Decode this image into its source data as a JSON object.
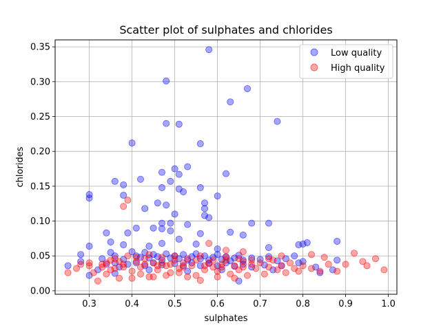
{
  "chart_data": {
    "type": "scatter",
    "title": "Scatter plot of sulphates and chlorides",
    "xlabel": "sulphates",
    "ylabel": "chlorides",
    "xlim": [
      0.22,
      1.02
    ],
    "ylim": [
      -0.005,
      0.36
    ],
    "xticks": [
      0.3,
      0.4,
      0.5,
      0.6,
      0.7,
      0.8,
      0.9,
      1.0
    ],
    "xtick_labels": [
      "0.3",
      "0.4",
      "0.5",
      "0.6",
      "0.7",
      "0.8",
      "0.9",
      "1.0"
    ],
    "yticks": [
      0.0,
      0.05,
      0.1,
      0.15,
      0.2,
      0.25,
      0.3,
      0.35
    ],
    "ytick_labels": [
      "0.00",
      "0.05",
      "0.10",
      "0.15",
      "0.20",
      "0.25",
      "0.30",
      "0.35"
    ],
    "grid": true,
    "legend_position": "top-right",
    "series": [
      {
        "name": "Low quality",
        "color": "#0000ff",
        "alpha": 0.35,
        "points": [
          [
            0.58,
            0.346
          ],
          [
            0.48,
            0.301
          ],
          [
            0.67,
            0.29
          ],
          [
            0.63,
            0.271
          ],
          [
            0.74,
            0.243
          ],
          [
            0.48,
            0.24
          ],
          [
            0.51,
            0.239
          ],
          [
            0.4,
            0.212
          ],
          [
            0.56,
            0.211
          ],
          [
            0.5,
            0.175
          ],
          [
            0.47,
            0.17
          ],
          [
            0.53,
            0.178
          ],
          [
            0.51,
            0.167
          ],
          [
            0.62,
            0.168
          ],
          [
            0.42,
            0.16
          ],
          [
            0.36,
            0.157
          ],
          [
            0.38,
            0.152
          ],
          [
            0.49,
            0.157
          ],
          [
            0.47,
            0.148
          ],
          [
            0.56,
            0.148
          ],
          [
            0.51,
            0.146
          ],
          [
            0.52,
            0.142
          ],
          [
            0.3,
            0.138
          ],
          [
            0.3,
            0.133
          ],
          [
            0.38,
            0.137
          ],
          [
            0.6,
            0.136
          ],
          [
            0.46,
            0.126
          ],
          [
            0.48,
            0.123
          ],
          [
            0.57,
            0.126
          ],
          [
            0.57,
            0.118
          ],
          [
            0.43,
            0.118
          ],
          [
            0.5,
            0.11
          ],
          [
            0.57,
            0.108
          ],
          [
            0.58,
            0.105
          ],
          [
            0.47,
            0.097
          ],
          [
            0.49,
            0.097
          ],
          [
            0.53,
            0.095
          ],
          [
            0.68,
            0.097
          ],
          [
            0.72,
            0.097
          ],
          [
            0.41,
            0.09
          ],
          [
            0.45,
            0.09
          ],
          [
            0.47,
            0.089
          ],
          [
            0.49,
            0.086
          ],
          [
            0.34,
            0.083
          ],
          [
            0.39,
            0.083
          ],
          [
            0.56,
            0.082
          ],
          [
            0.63,
            0.084
          ],
          [
            0.66,
            0.08
          ],
          [
            0.51,
            0.074
          ],
          [
            0.35,
            0.07
          ],
          [
            0.38,
            0.066
          ],
          [
            0.3,
            0.064
          ],
          [
            0.44,
            0.064
          ],
          [
            0.47,
            0.068
          ],
          [
            0.55,
            0.067
          ],
          [
            0.6,
            0.06
          ],
          [
            0.72,
            0.062
          ],
          [
            0.79,
            0.066
          ],
          [
            0.8,
            0.067
          ],
          [
            0.81,
            0.069
          ],
          [
            0.88,
            0.071
          ],
          [
            0.33,
            0.046
          ],
          [
            0.35,
            0.055
          ],
          [
            0.36,
            0.05
          ],
          [
            0.38,
            0.045
          ],
          [
            0.4,
            0.056
          ],
          [
            0.41,
            0.05
          ],
          [
            0.42,
            0.048
          ],
          [
            0.43,
            0.055
          ],
          [
            0.44,
            0.047
          ],
          [
            0.45,
            0.052
          ],
          [
            0.46,
            0.049
          ],
          [
            0.47,
            0.044
          ],
          [
            0.48,
            0.053
          ],
          [
            0.49,
            0.047
          ],
          [
            0.5,
            0.05
          ],
          [
            0.51,
            0.046
          ],
          [
            0.52,
            0.052
          ],
          [
            0.53,
            0.044
          ],
          [
            0.54,
            0.049
          ],
          [
            0.55,
            0.053
          ],
          [
            0.56,
            0.046
          ],
          [
            0.57,
            0.05
          ],
          [
            0.58,
            0.044
          ],
          [
            0.59,
            0.048
          ],
          [
            0.6,
            0.052
          ],
          [
            0.61,
            0.045
          ],
          [
            0.62,
            0.049
          ],
          [
            0.63,
            0.043
          ],
          [
            0.64,
            0.047
          ],
          [
            0.65,
            0.051
          ],
          [
            0.66,
            0.044
          ],
          [
            0.68,
            0.047
          ],
          [
            0.7,
            0.045
          ],
          [
            0.72,
            0.049
          ],
          [
            0.74,
            0.043
          ],
          [
            0.76,
            0.046
          ],
          [
            0.78,
            0.05
          ],
          [
            0.8,
            0.042
          ],
          [
            0.25,
            0.036
          ],
          [
            0.28,
            0.042
          ],
          [
            0.28,
            0.052
          ],
          [
            0.3,
            0.022
          ],
          [
            0.32,
            0.03
          ],
          [
            0.34,
            0.038
          ],
          [
            0.36,
            0.04
          ],
          [
            0.37,
            0.034
          ],
          [
            0.39,
            0.038
          ],
          [
            0.41,
            0.04
          ],
          [
            0.43,
            0.036
          ],
          [
            0.45,
            0.04
          ],
          [
            0.47,
            0.037
          ],
          [
            0.5,
            0.039
          ],
          [
            0.52,
            0.036
          ],
          [
            0.54,
            0.04
          ],
          [
            0.56,
            0.036
          ],
          [
            0.58,
            0.039
          ],
          [
            0.6,
            0.036
          ],
          [
            0.62,
            0.04
          ],
          [
            0.64,
            0.035
          ],
          [
            0.66,
            0.038
          ],
          [
            0.68,
            0.034
          ],
          [
            0.71,
            0.037
          ],
          [
            0.75,
            0.036
          ],
          [
            0.79,
            0.04
          ],
          [
            0.84,
            0.026
          ],
          [
            0.87,
            0.03
          ],
          [
            0.88,
            0.044
          ],
          [
            0.65,
            0.014
          ],
          [
            0.36,
            0.025
          ],
          [
            0.44,
            0.03
          ],
          [
            0.53,
            0.028
          ],
          [
            0.61,
            0.03
          ],
          [
            0.73,
            0.03
          ],
          [
            0.83,
            0.034
          ]
        ]
      },
      {
        "name": "High quality",
        "color": "#ff0000",
        "alpha": 0.35,
        "points": [
          [
            0.39,
            0.13
          ],
          [
            0.38,
            0.121
          ],
          [
            0.58,
            0.068
          ],
          [
            0.62,
            0.058
          ],
          [
            0.66,
            0.056
          ],
          [
            0.25,
            0.026
          ],
          [
            0.27,
            0.032
          ],
          [
            0.28,
            0.038
          ],
          [
            0.3,
            0.036
          ],
          [
            0.31,
            0.026
          ],
          [
            0.32,
            0.014
          ],
          [
            0.33,
            0.034
          ],
          [
            0.34,
            0.04
          ],
          [
            0.35,
            0.03
          ],
          [
            0.36,
            0.046
          ],
          [
            0.37,
            0.018
          ],
          [
            0.38,
            0.038
          ],
          [
            0.39,
            0.05
          ],
          [
            0.4,
            0.028
          ],
          [
            0.41,
            0.042
          ],
          [
            0.42,
            0.034
          ],
          [
            0.43,
            0.046
          ],
          [
            0.44,
            0.02
          ],
          [
            0.45,
            0.04
          ],
          [
            0.46,
            0.03
          ],
          [
            0.47,
            0.048
          ],
          [
            0.48,
            0.036
          ],
          [
            0.49,
            0.026
          ],
          [
            0.5,
            0.044
          ],
          [
            0.51,
            0.032
          ],
          [
            0.52,
            0.04
          ],
          [
            0.53,
            0.02
          ],
          [
            0.54,
            0.036
          ],
          [
            0.55,
            0.044
          ],
          [
            0.56,
            0.015
          ],
          [
            0.57,
            0.03
          ],
          [
            0.58,
            0.04
          ],
          [
            0.59,
            0.034
          ],
          [
            0.6,
            0.028
          ],
          [
            0.61,
            0.038
          ],
          [
            0.62,
            0.044
          ],
          [
            0.63,
            0.024
          ],
          [
            0.64,
            0.036
          ],
          [
            0.65,
            0.03
          ],
          [
            0.66,
            0.042
          ],
          [
            0.67,
            0.022
          ],
          [
            0.68,
            0.038
          ],
          [
            0.69,
            0.032
          ],
          [
            0.7,
            0.04
          ],
          [
            0.71,
            0.024
          ],
          [
            0.72,
            0.034
          ],
          [
            0.73,
            0.044
          ],
          [
            0.74,
            0.03
          ],
          [
            0.75,
            0.036
          ],
          [
            0.76,
            0.026
          ],
          [
            0.77,
            0.04
          ],
          [
            0.78,
            0.032
          ],
          [
            0.79,
            0.028
          ],
          [
            0.8,
            0.036
          ],
          [
            0.82,
            0.032
          ],
          [
            0.82,
            0.052
          ],
          [
            0.84,
            0.028
          ],
          [
            0.85,
            0.048
          ],
          [
            0.86,
            0.038
          ],
          [
            0.88,
            0.028
          ],
          [
            0.9,
            0.038
          ],
          [
            0.92,
            0.054
          ],
          [
            0.94,
            0.042
          ],
          [
            0.95,
            0.036
          ],
          [
            0.97,
            0.046
          ],
          [
            0.99,
            0.03
          ],
          [
            0.34,
            0.024
          ],
          [
            0.36,
            0.032
          ],
          [
            0.4,
            0.018
          ],
          [
            0.42,
            0.024
          ],
          [
            0.45,
            0.02
          ],
          [
            0.48,
            0.022
          ],
          [
            0.51,
            0.026
          ],
          [
            0.55,
            0.022
          ],
          [
            0.6,
            0.02
          ],
          [
            0.64,
            0.018
          ],
          [
            0.35,
            0.044
          ],
          [
            0.37,
            0.042
          ],
          [
            0.41,
            0.048
          ],
          [
            0.44,
            0.052
          ],
          [
            0.47,
            0.04
          ],
          [
            0.5,
            0.05
          ],
          [
            0.53,
            0.046
          ],
          [
            0.56,
            0.05
          ],
          [
            0.59,
            0.044
          ],
          [
            0.62,
            0.048
          ],
          [
            0.65,
            0.046
          ],
          [
            0.68,
            0.044
          ],
          [
            0.72,
            0.046
          ],
          [
            0.75,
            0.05
          ],
          [
            0.3,
            0.04
          ],
          [
            0.33,
            0.038
          ],
          [
            0.38,
            0.034
          ],
          [
            0.43,
            0.038
          ],
          [
            0.46,
            0.036
          ],
          [
            0.49,
            0.038
          ],
          [
            0.52,
            0.034
          ],
          [
            0.57,
            0.036
          ],
          [
            0.61,
            0.034
          ],
          [
            0.66,
            0.034
          ]
        ]
      }
    ]
  }
}
